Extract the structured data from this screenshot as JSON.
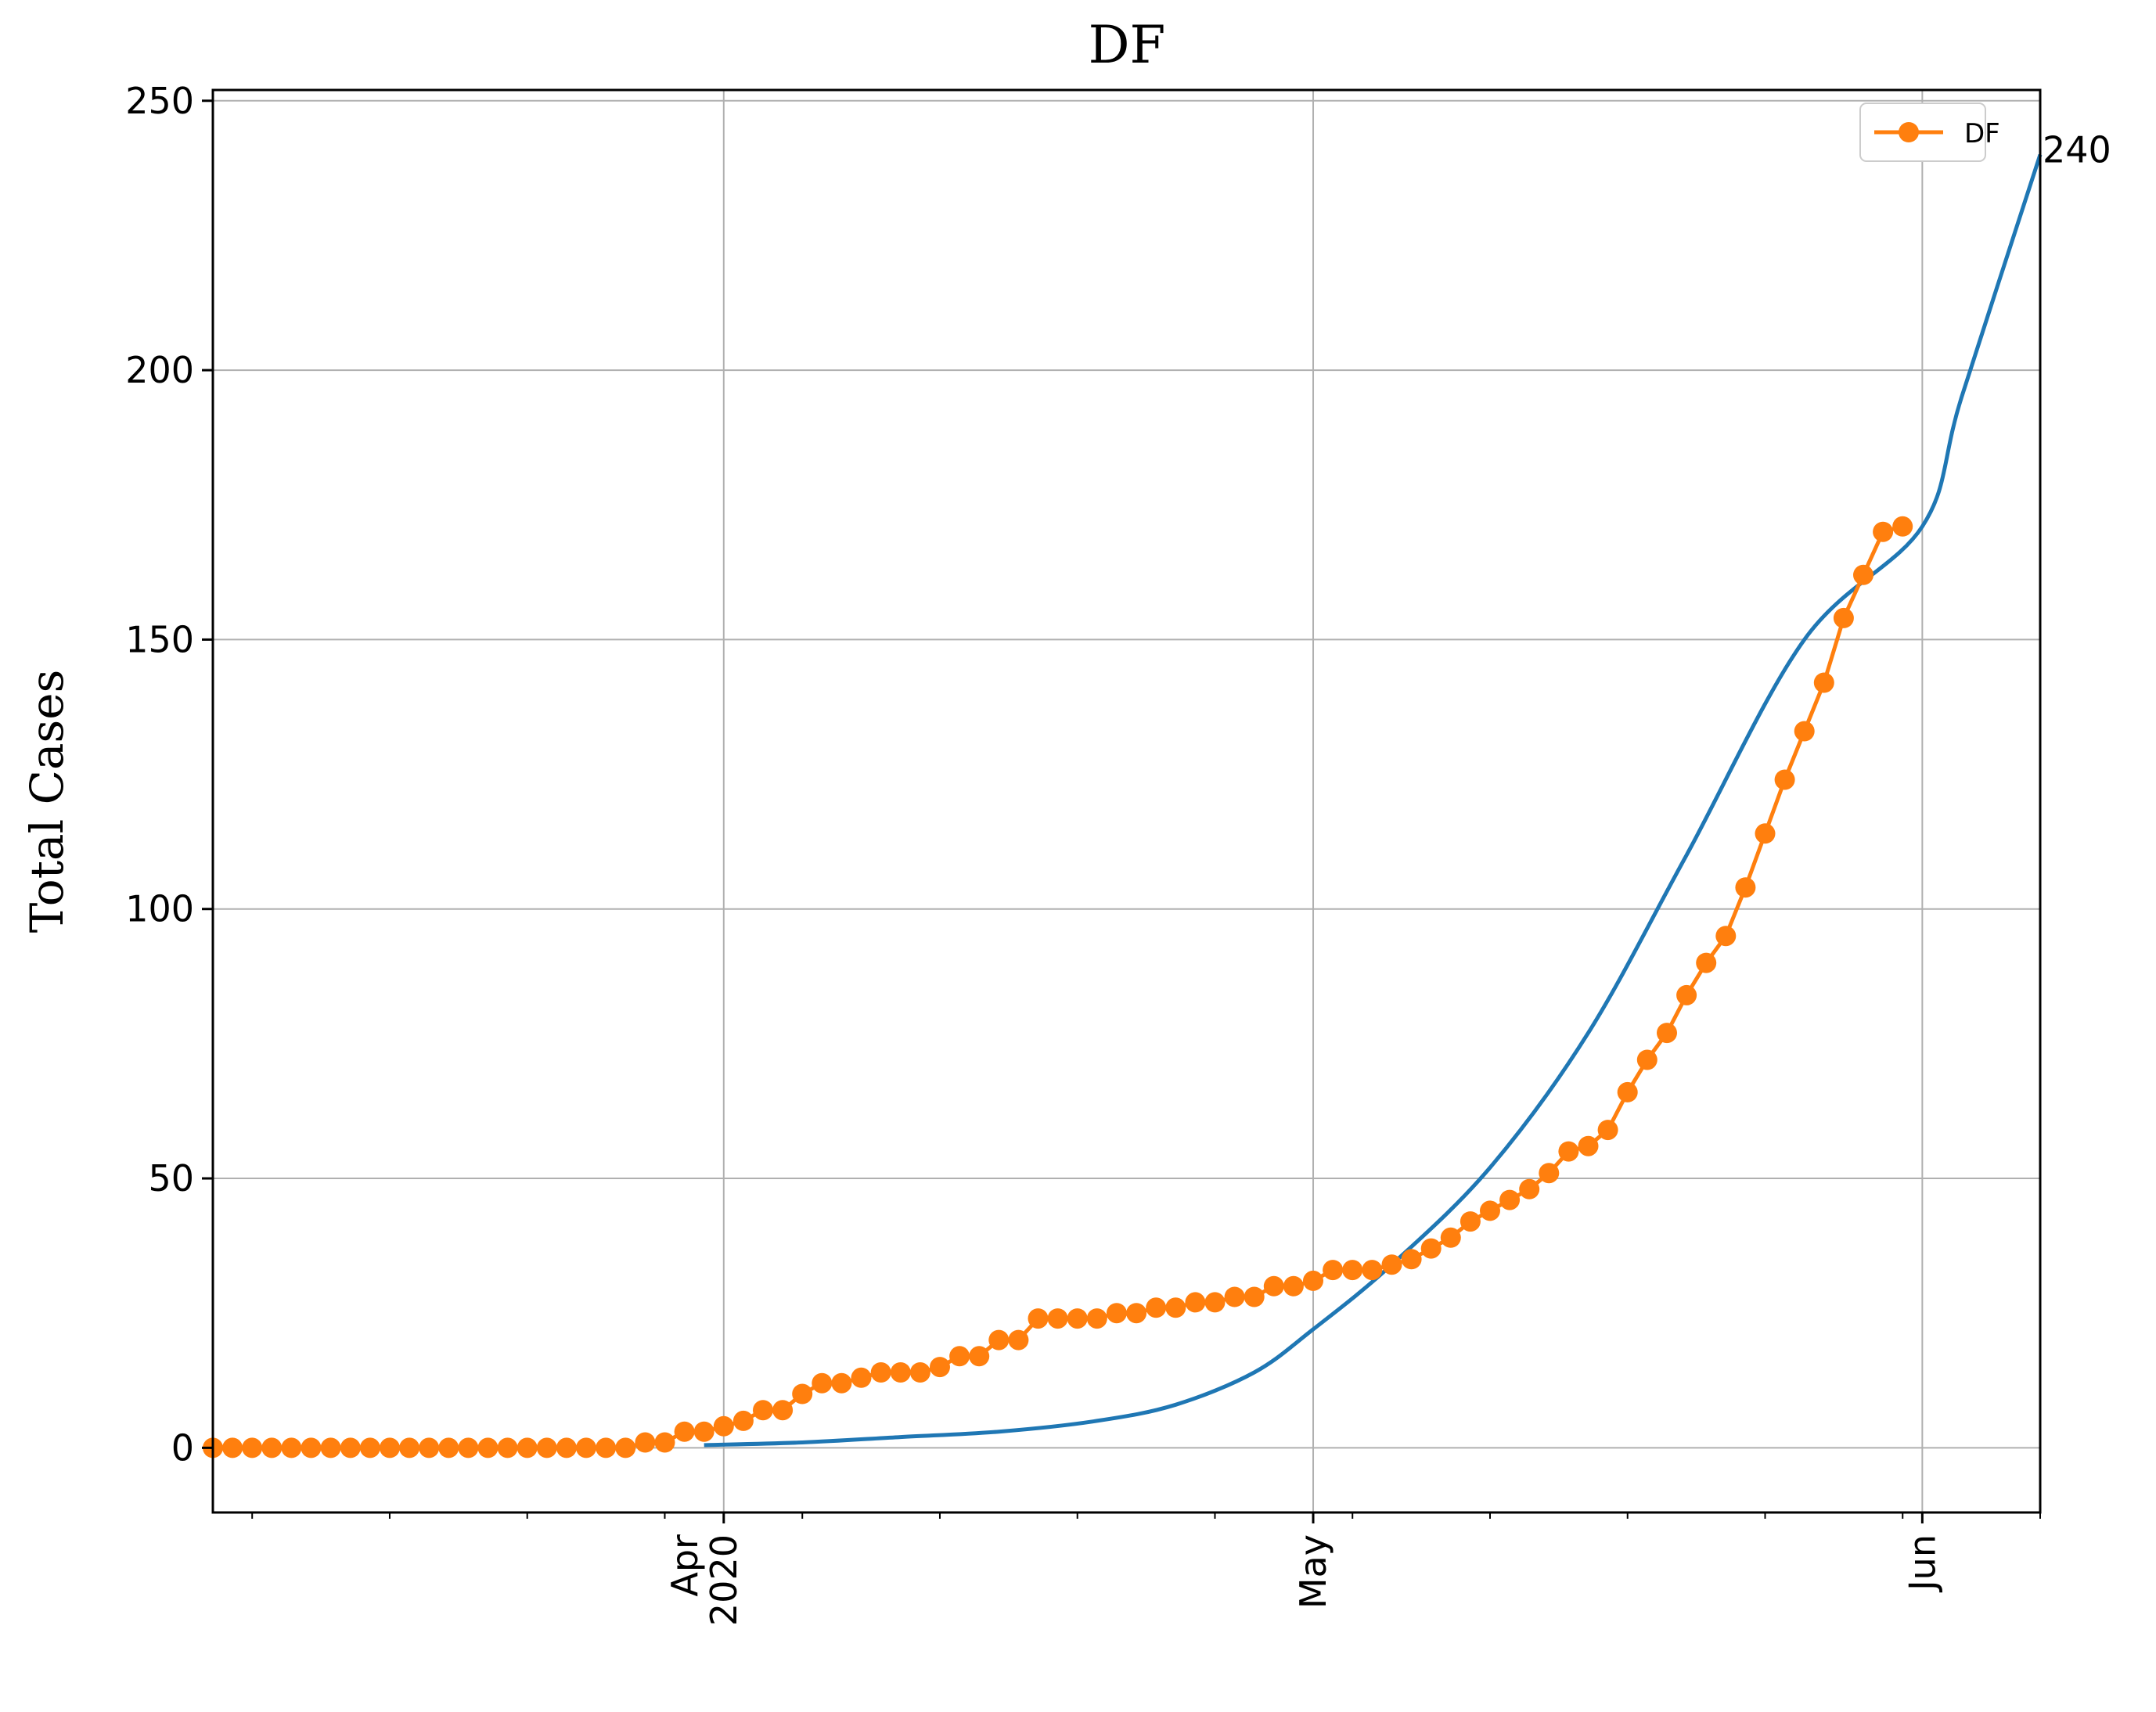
{
  "chart_data": {
    "type": "line",
    "title": "DF",
    "ylabel": "Total Cases",
    "xlabel": "",
    "x_start": "2020-03-06",
    "x_end": "2020-06-07",
    "ylim": [
      -12,
      252
    ],
    "yticks": [
      0,
      50,
      100,
      150,
      200,
      250
    ],
    "xticks": [
      {
        "date": "2020-04-01",
        "label": [
          "Apr",
          "2020"
        ]
      },
      {
        "date": "2020-05-01",
        "label": [
          "May"
        ]
      },
      {
        "date": "2020-06-01",
        "label": [
          "Jun"
        ]
      }
    ],
    "grid": true,
    "legend": {
      "placement": "top-right",
      "entries": [
        "DF"
      ]
    },
    "series": [
      {
        "name": "DF",
        "color": "#ff7f0e",
        "marker": "circle",
        "start_date": "2020-03-06",
        "values": [
          0,
          0,
          0,
          0,
          0,
          0,
          0,
          0,
          0,
          0,
          0,
          0,
          0,
          0,
          0,
          0,
          0,
          0,
          0,
          0,
          0,
          0,
          1,
          1,
          3,
          3,
          4,
          5,
          7,
          7,
          10,
          12,
          12,
          13,
          14,
          14,
          14,
          15,
          17,
          17,
          20,
          20,
          24,
          24,
          24,
          24,
          25,
          25,
          26,
          26,
          27,
          27,
          28,
          28,
          30,
          30,
          31,
          33,
          33,
          33,
          34,
          35,
          37,
          39,
          42,
          44,
          46,
          48,
          51,
          55,
          56,
          59,
          66,
          72,
          77,
          84,
          90,
          95,
          104,
          114,
          124,
          133,
          142,
          154,
          162,
          170,
          171
        ]
      },
      {
        "name": "",
        "color": "#1f77b4",
        "marker": "none",
        "curve": "fit",
        "start_date": "2020-03-31",
        "end_date": "2020-06-07",
        "values": [
          0.5,
          1,
          2,
          3,
          5,
          8,
          14,
          22,
          34,
          52,
          77,
          110,
          150,
          171,
          195,
          240
        ],
        "value_dates": [
          "2020-03-31",
          "2020-04-05",
          "2020-04-10",
          "2020-04-15",
          "2020-04-20",
          "2020-04-24",
          "2020-04-28",
          "2020-05-01",
          "2020-05-05",
          "2020-05-10",
          "2020-05-15",
          "2020-05-20",
          "2020-05-26",
          "2020-06-01",
          "2020-06-03",
          "2020-06-07"
        ]
      }
    ],
    "annotations": [
      {
        "text": "240",
        "date": "2020-06-07",
        "value": 240
      }
    ]
  }
}
